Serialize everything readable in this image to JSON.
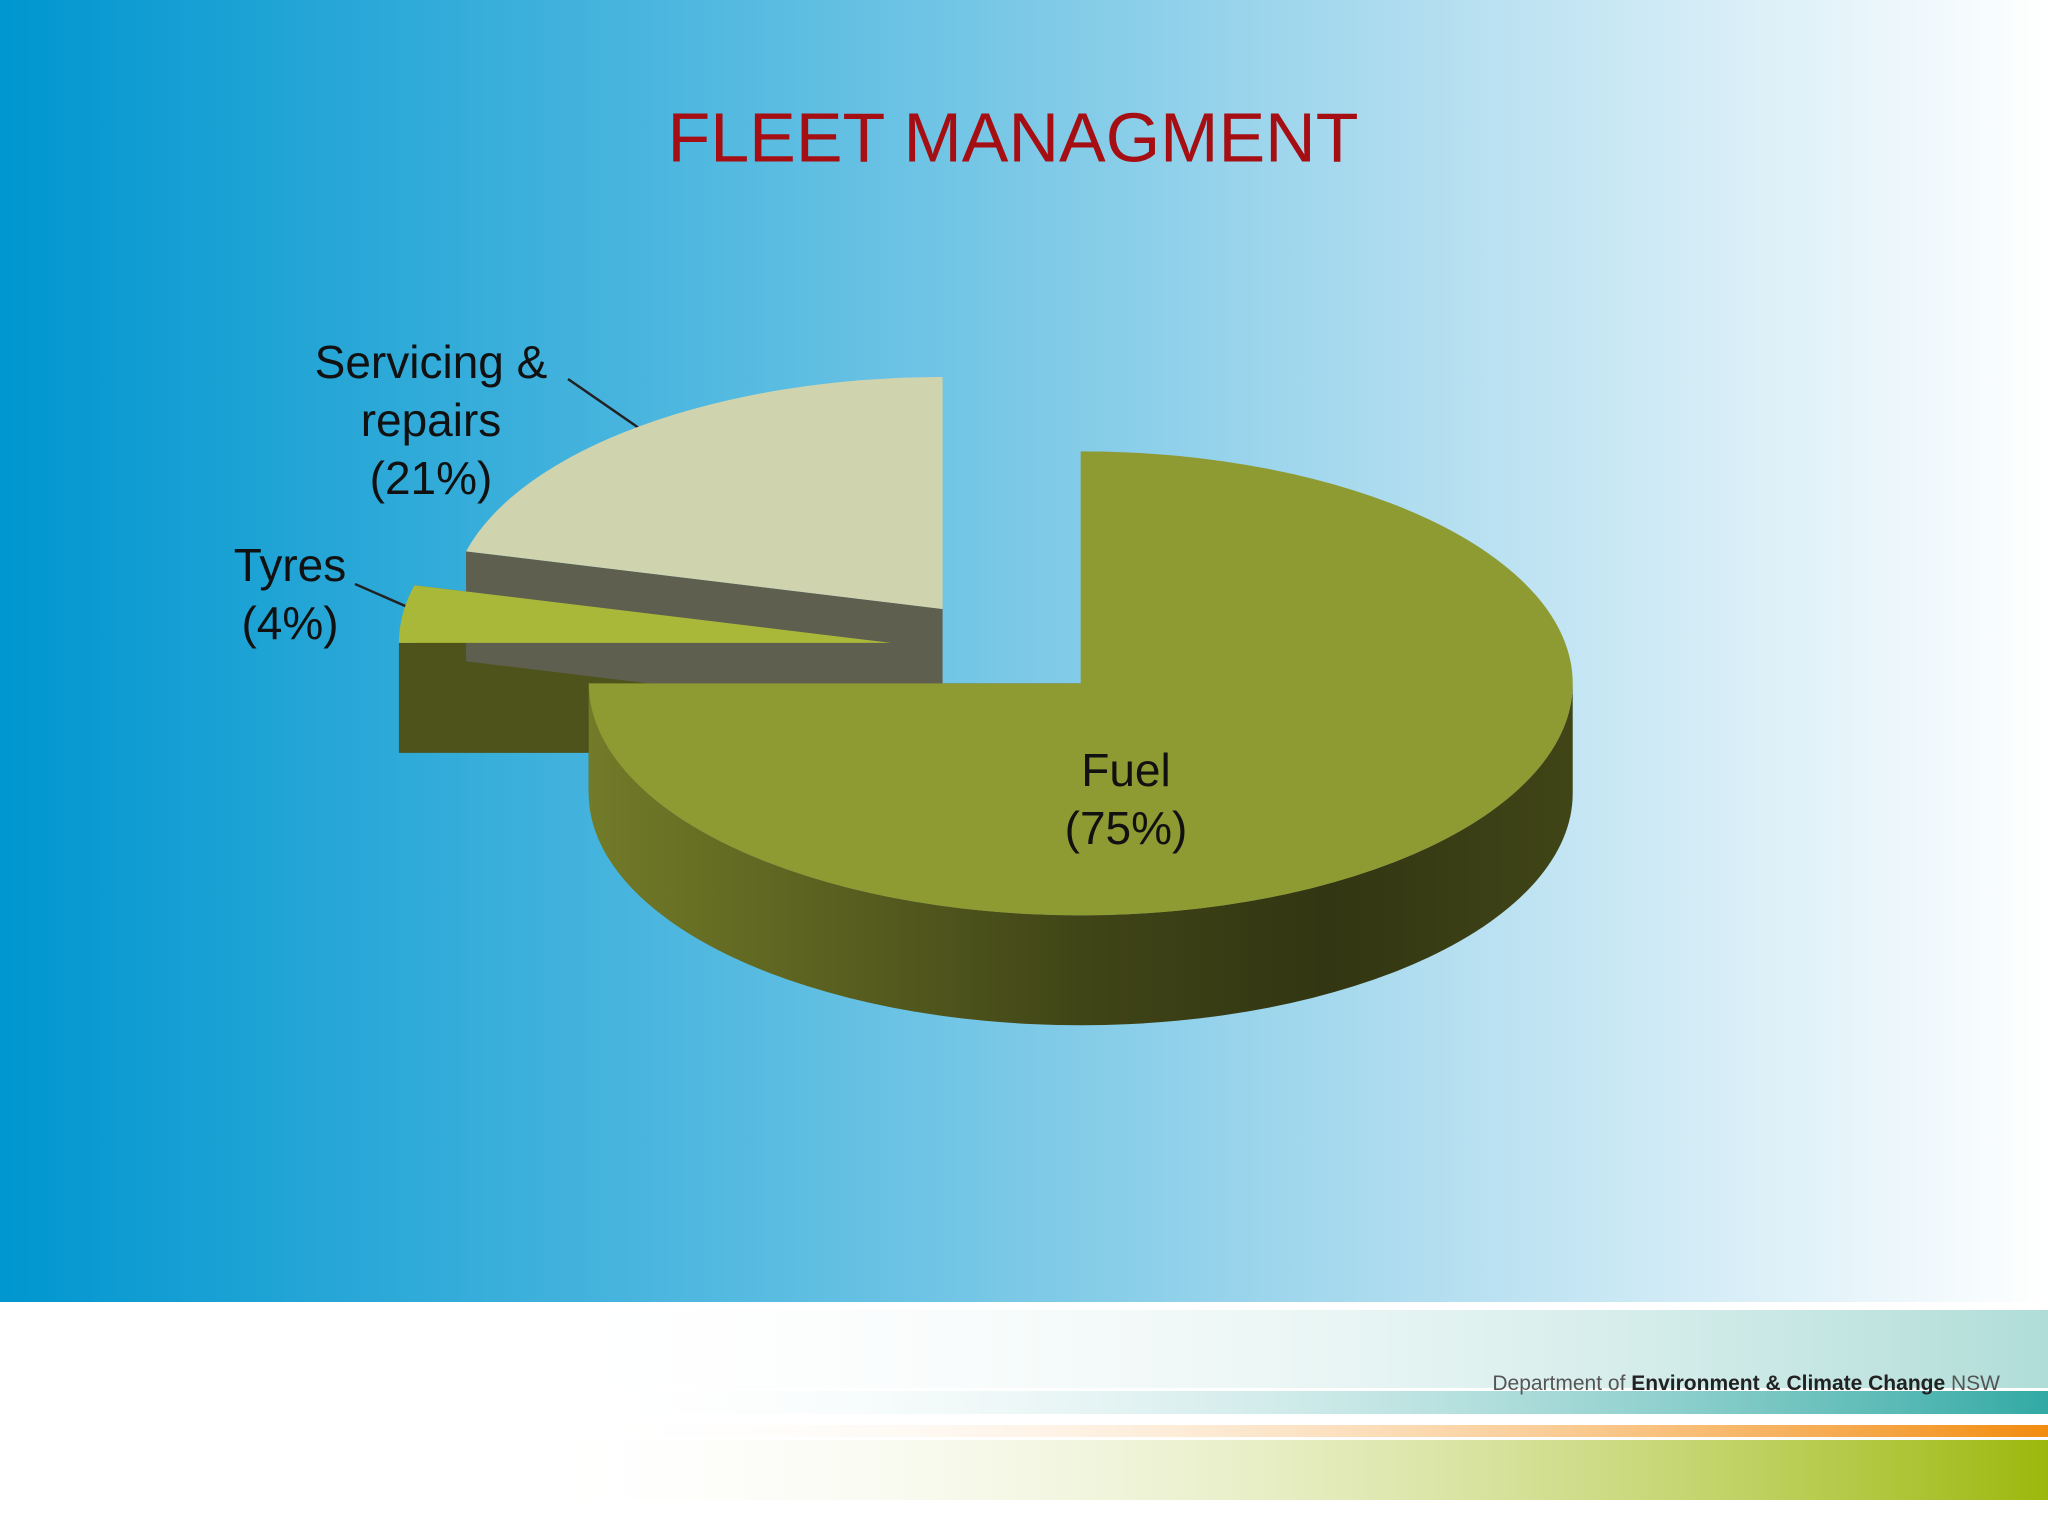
{
  "chart_data": {
    "type": "pie",
    "title": "FLEET MANAGMENT",
    "categories": [
      "Fuel",
      "Tyres",
      "Servicing & repairs"
    ],
    "values": [
      75,
      4,
      21
    ],
    "value_labels": [
      "(75%)",
      "(4%)",
      "(21%)"
    ],
    "colors": [
      "#8e9a32",
      "#aab83a",
      "#d0d4ae"
    ]
  },
  "footer": {
    "parts": [
      "Department of",
      "Environment & Climate Change",
      "NSW"
    ]
  }
}
